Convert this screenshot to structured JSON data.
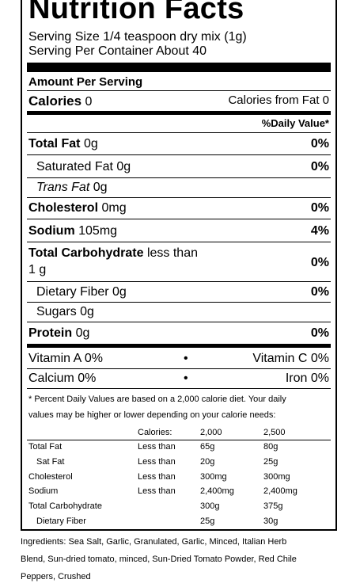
{
  "title": "Nutrition Facts",
  "serving_size": "Serving Size 1/4 teaspoon dry mix (1g)",
  "servings_per_container": "Serving Per Container About 40",
  "amount_per_serving": "Amount Per Serving",
  "calories": {
    "label": "Calories",
    "value": "0",
    "fat_label": "Calories from Fat",
    "fat_value": "0"
  },
  "daily_value_header": "%Daily Value*",
  "nutrients": {
    "total_fat": {
      "label": "Total Fat",
      "amount": "0g",
      "dv": "0%"
    },
    "sat_fat": {
      "label": "Saturated Fat",
      "amount": "0g",
      "dv": "0%"
    },
    "trans_fat": {
      "label": "Trans Fat",
      "amount": "0g"
    },
    "cholesterol": {
      "label": "Cholesterol",
      "amount": "0mg",
      "dv": "0%"
    },
    "sodium": {
      "label": "Sodium",
      "amount": "105mg",
      "dv": "4%"
    },
    "total_carb": {
      "label": "Total Carbohydrate",
      "amount_line1": "less than",
      "amount_line2": "1 g",
      "dv": "0%"
    },
    "fiber": {
      "label": "Dietary Fiber",
      "amount": "0g",
      "dv": "0%"
    },
    "sugars": {
      "label": "Sugars",
      "amount": "0g"
    },
    "protein": {
      "label": "Protein",
      "amount": "0g",
      "dv": "0%"
    }
  },
  "vitamins": {
    "vitamin_a": "Vitamin A 0%",
    "vitamin_c": "Vitamin C 0%",
    "calcium": "Calcium 0%",
    "iron": "Iron 0%",
    "bullet": "•"
  },
  "footnote": {
    "line1": "* Percent Daily Values are based on a 2,000 calorie diet. Your daily",
    "line2": "values may be higher or lower depending on your calorie needs:"
  },
  "dv_table": {
    "header": {
      "label": "Calories:",
      "col1": "2,000",
      "col2": "2,500"
    },
    "rows": [
      {
        "name": "Total Fat",
        "cmp": "Less than",
        "col1": "65g",
        "col2": "80g"
      },
      {
        "name": "Sat Fat",
        "cmp": "Less than",
        "col1": "20g",
        "col2": "25g"
      },
      {
        "name": "Cholesterol",
        "cmp": "Less than",
        "col1": "300mg",
        "col2": "300mg"
      },
      {
        "name": "Sodium",
        "cmp": "Less than",
        "col1": "2,400mg",
        "col2": "2,400mg"
      },
      {
        "name": "Total Carbohydrate",
        "cmp": "",
        "col1": "300g",
        "col2": "375g"
      },
      {
        "name": "Dietary Fiber",
        "cmp": "",
        "col1": "25g",
        "col2": "30g"
      }
    ]
  },
  "ingredients": {
    "line1": "Ingredients: Sea Salt, Garlic, Granulated, Garlic, Minced, Italian Herb",
    "line2": "Blend, Sun-dried tomato, minced, Sun-Dried Tomato Powder, Red Chile",
    "line3": "Peppers, Crushed"
  }
}
